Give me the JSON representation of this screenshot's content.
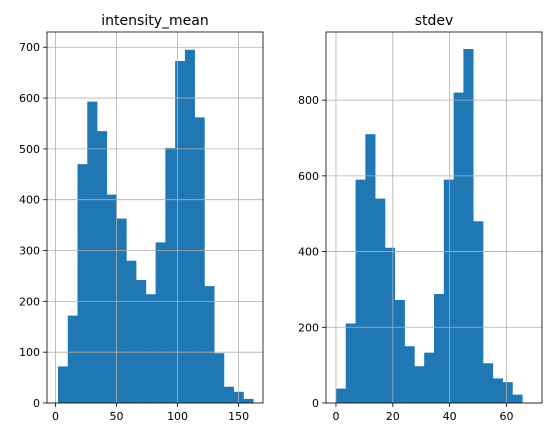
{
  "chart_data": [
    {
      "type": "bar",
      "title": "intensity_mean",
      "xlabel": "",
      "ylabel": "",
      "xlim": [
        -7,
        170
      ],
      "ylim": [
        0,
        730
      ],
      "grid": true,
      "bar_color": "#1f77b4",
      "bin_edges": [
        2,
        10,
        18,
        26,
        34,
        42,
        50,
        58,
        66,
        74,
        82,
        90,
        98,
        106,
        114,
        122,
        130,
        138,
        146,
        154,
        162
      ],
      "values": [
        72,
        172,
        470,
        593,
        535,
        410,
        363,
        280,
        242,
        214,
        316,
        502,
        673,
        695,
        562,
        230,
        98,
        32,
        22,
        8
      ],
      "xticks": [
        0,
        50,
        100,
        150
      ],
      "xtick_labels": [
        "0",
        "50",
        "100",
        "150"
      ],
      "yticks": [
        0,
        100,
        200,
        300,
        400,
        500,
        600,
        700
      ],
      "ytick_labels": [
        "0",
        "100",
        "200",
        "300",
        "400",
        "500",
        "600",
        "700"
      ]
    },
    {
      "type": "bar",
      "title": "stdev",
      "xlabel": "",
      "ylabel": "",
      "xlim": [
        -3.5,
        72.5
      ],
      "ylim": [
        0,
        980
      ],
      "grid": true,
      "bar_color": "#1f77b4",
      "bin_edges": [
        0,
        3.45,
        6.9,
        10.35,
        13.8,
        17.25,
        20.7,
        24.15,
        27.6,
        31.05,
        34.5,
        37.95,
        41.4,
        44.85,
        48.3,
        51.75,
        55.2,
        58.65,
        62.1,
        65.55,
        69
      ],
      "values": [
        38,
        210,
        590,
        710,
        540,
        410,
        272,
        150,
        97,
        133,
        288,
        590,
        820,
        935,
        480,
        105,
        65,
        55,
        22,
        0
      ],
      "xticks": [
        0,
        20,
        40,
        60
      ],
      "xtick_labels": [
        "0",
        "20",
        "40",
        "60"
      ],
      "yticks": [
        0,
        200,
        400,
        600,
        800
      ],
      "ytick_labels": [
        "0",
        "200",
        "400",
        "600",
        "800"
      ]
    }
  ]
}
